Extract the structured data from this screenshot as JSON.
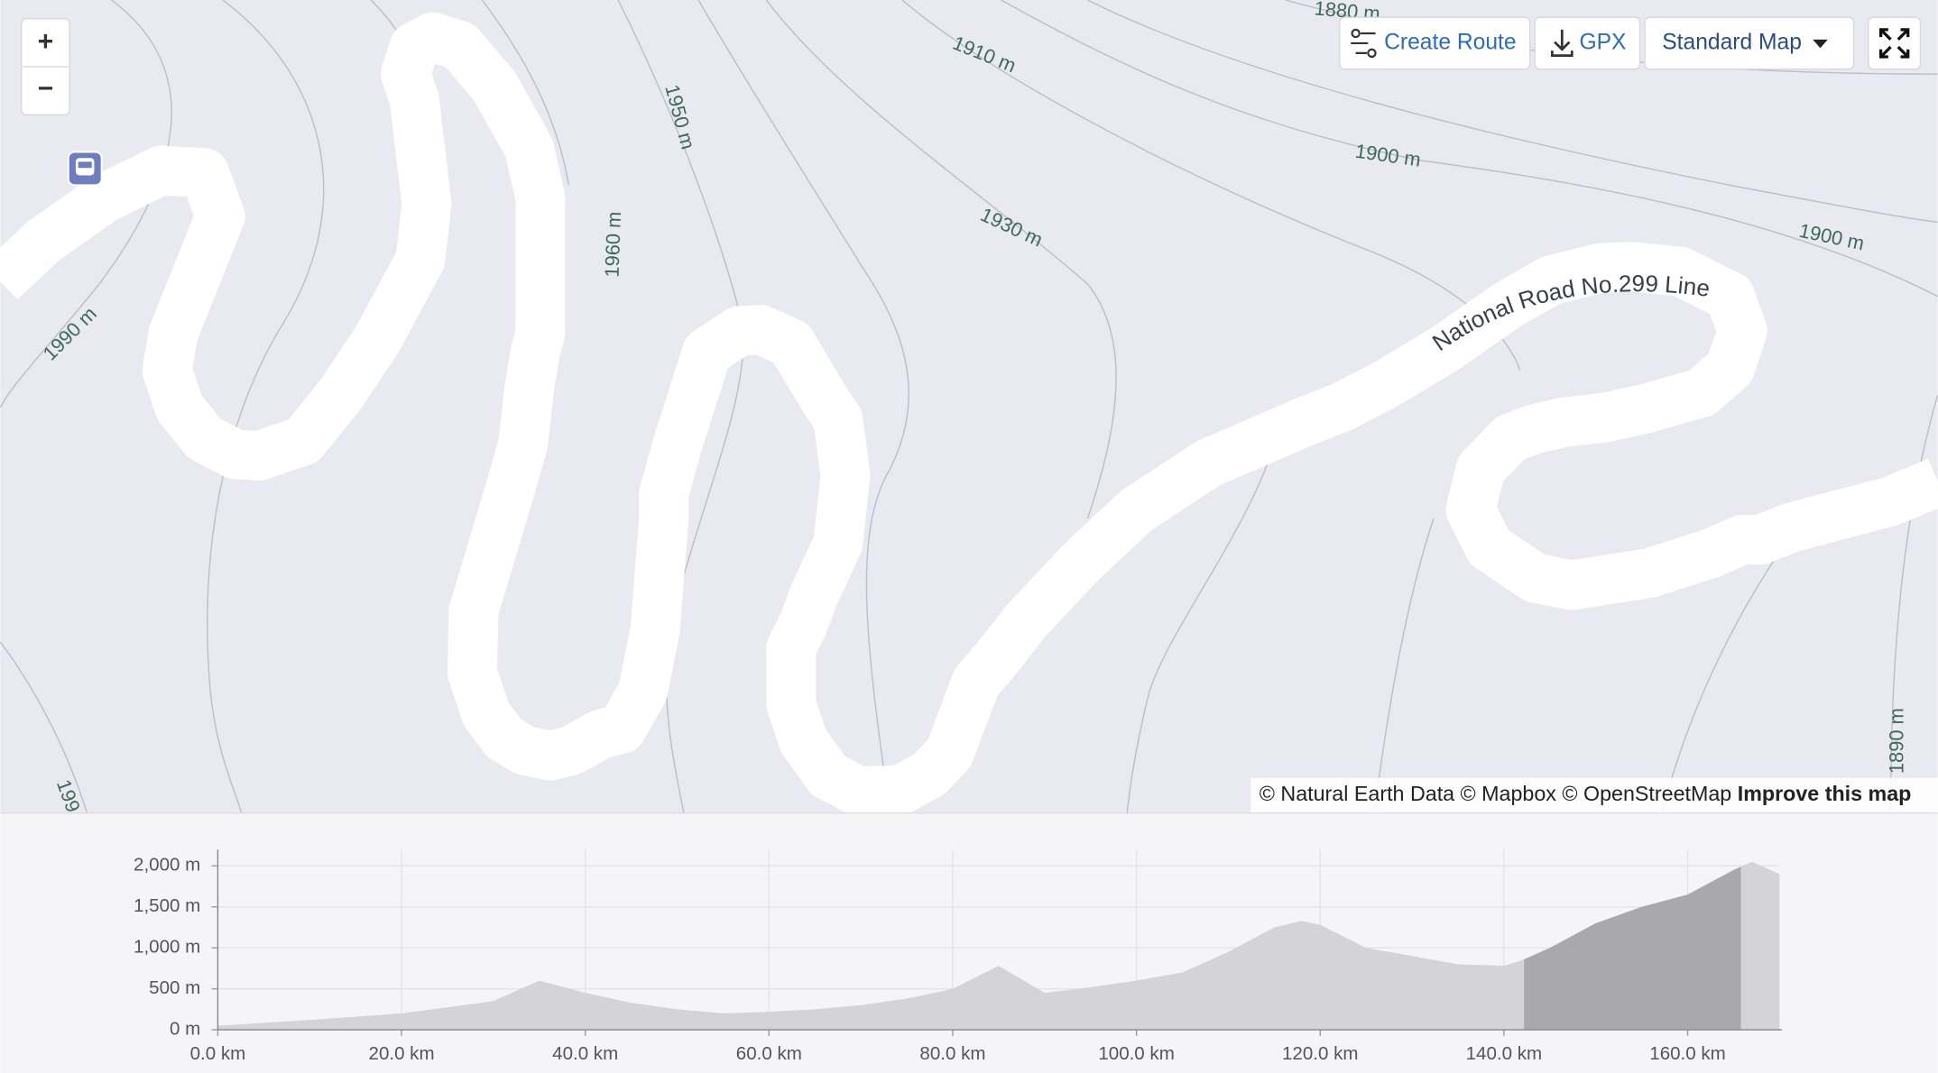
{
  "controls": {
    "zoom_in": "+",
    "zoom_out": "−",
    "create_route": "Create Route",
    "gpx": "GPX",
    "map_style": "Standard Map"
  },
  "map": {
    "road_label": "National Road No.299 Line",
    "contour_labels": [
      "1880 m",
      "1910 m",
      "1950 m",
      "1960 m",
      "1900 m",
      "1900 m",
      "1930 m",
      "1990 m",
      "1890 m",
      "199"
    ],
    "attribution": "© Natural Earth Data © Mapbox © OpenStreetMap",
    "improve": "Improve this map"
  },
  "chart_data": {
    "type": "area",
    "color": "#d4d4d8",
    "highlight_color": "#a9a9ad",
    "x": [
      0,
      10,
      20,
      30,
      35,
      40,
      45,
      50,
      55,
      60,
      65,
      70,
      75,
      80,
      85,
      90,
      95,
      100,
      105,
      110,
      115,
      118,
      120,
      125,
      130,
      135,
      140,
      142,
      145,
      150,
      155,
      160,
      165,
      167,
      170
    ],
    "values": [
      50,
      120,
      200,
      350,
      600,
      450,
      330,
      250,
      200,
      220,
      250,
      300,
      380,
      500,
      780,
      450,
      520,
      600,
      700,
      950,
      1250,
      1330,
      1280,
      1000,
      900,
      800,
      780,
      850,
      1000,
      1300,
      1500,
      1650,
      1950,
      2050,
      1900
    ],
    "highlight_x": [
      142.2,
      165.8
    ],
    "xlim": [
      0,
      170
    ],
    "ylim": [
      0,
      2200
    ],
    "xticks": [
      {
        "value": 0,
        "label": "0.0 km"
      },
      {
        "value": 20,
        "label": "20.0 km"
      },
      {
        "value": 40,
        "label": "40.0 km"
      },
      {
        "value": 60,
        "label": "60.0 km"
      },
      {
        "value": 80,
        "label": "80.0 km"
      },
      {
        "value": 100,
        "label": "100.0 km"
      },
      {
        "value": 120,
        "label": "120.0 km"
      },
      {
        "value": 140,
        "label": "140.0 km"
      },
      {
        "value": 160,
        "label": "160.0 km"
      }
    ],
    "yticks": [
      {
        "value": 0,
        "label": "0 m"
      },
      {
        "value": 500,
        "label": "500 m"
      },
      {
        "value": 1000,
        "label": "1,000 m"
      },
      {
        "value": 1500,
        "label": "1,500 m"
      },
      {
        "value": 2000,
        "label": "2,000 m"
      }
    ],
    "grid": true
  }
}
